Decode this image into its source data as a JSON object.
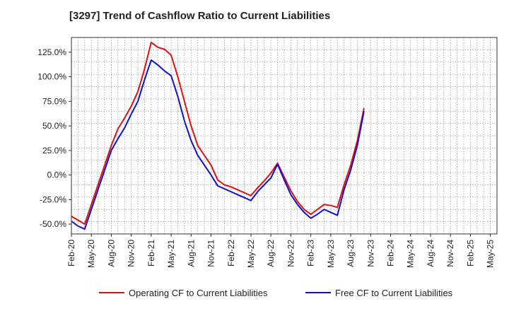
{
  "chart_data": {
    "type": "line",
    "title": "[3297]  Trend of Cashflow Ratio to Current Liabilities",
    "xlabel": "",
    "ylabel": "",
    "ylim": [
      -60,
      140
    ],
    "yticks": [
      "125.0%",
      "100.0%",
      "75.0%",
      "50.0%",
      "25.0%",
      "0.0%",
      "-25.0%",
      "-50.0%"
    ],
    "ytick_values": [
      125,
      100,
      75,
      50,
      25,
      0,
      -25,
      -50
    ],
    "x_tick_labels": [
      "Feb-20",
      "May-20",
      "Aug-20",
      "Nov-20",
      "Feb-21",
      "May-21",
      "Aug-21",
      "Nov-21",
      "Feb-22",
      "May-22",
      "Aug-22",
      "Nov-22",
      "Feb-23",
      "May-23",
      "Aug-23",
      "Nov-23",
      "Feb-24",
      "May-24",
      "Aug-24",
      "Nov-24",
      "Feb-25",
      "May-25"
    ],
    "grid": true,
    "legend_position": "bottom",
    "series": [
      {
        "name": "Operating CF to Current Liabilities",
        "color": "#dd1111",
        "values": [
          -42,
          -46,
          -50,
          -30,
          -10,
          10,
          30,
          47,
          58,
          70,
          85,
          108,
          135,
          130,
          128,
          122,
          100,
          75,
          50,
          30,
          20,
          10,
          -5,
          -10,
          -12,
          -15,
          -18,
          -21,
          -13,
          -6,
          2,
          12,
          -2,
          -16,
          -27,
          -35,
          -40,
          -35,
          -30,
          -31,
          -33,
          -10,
          10,
          35,
          68
        ]
      },
      {
        "name": "Free CF to Current Liabilities",
        "color": "#1111cc",
        "values": [
          -47,
          -52,
          -55,
          -35,
          -15,
          5,
          25,
          37,
          48,
          62,
          75,
          97,
          117,
          112,
          106,
          101,
          80,
          55,
          35,
          20,
          10,
          0,
          -11,
          -14,
          -17,
          -20,
          -23,
          -26,
          -17,
          -10,
          -3,
          11,
          -5,
          -20,
          -30,
          -38,
          -44,
          -40,
          -35,
          -38,
          -41,
          -15,
          5,
          30,
          65
        ]
      }
    ]
  }
}
